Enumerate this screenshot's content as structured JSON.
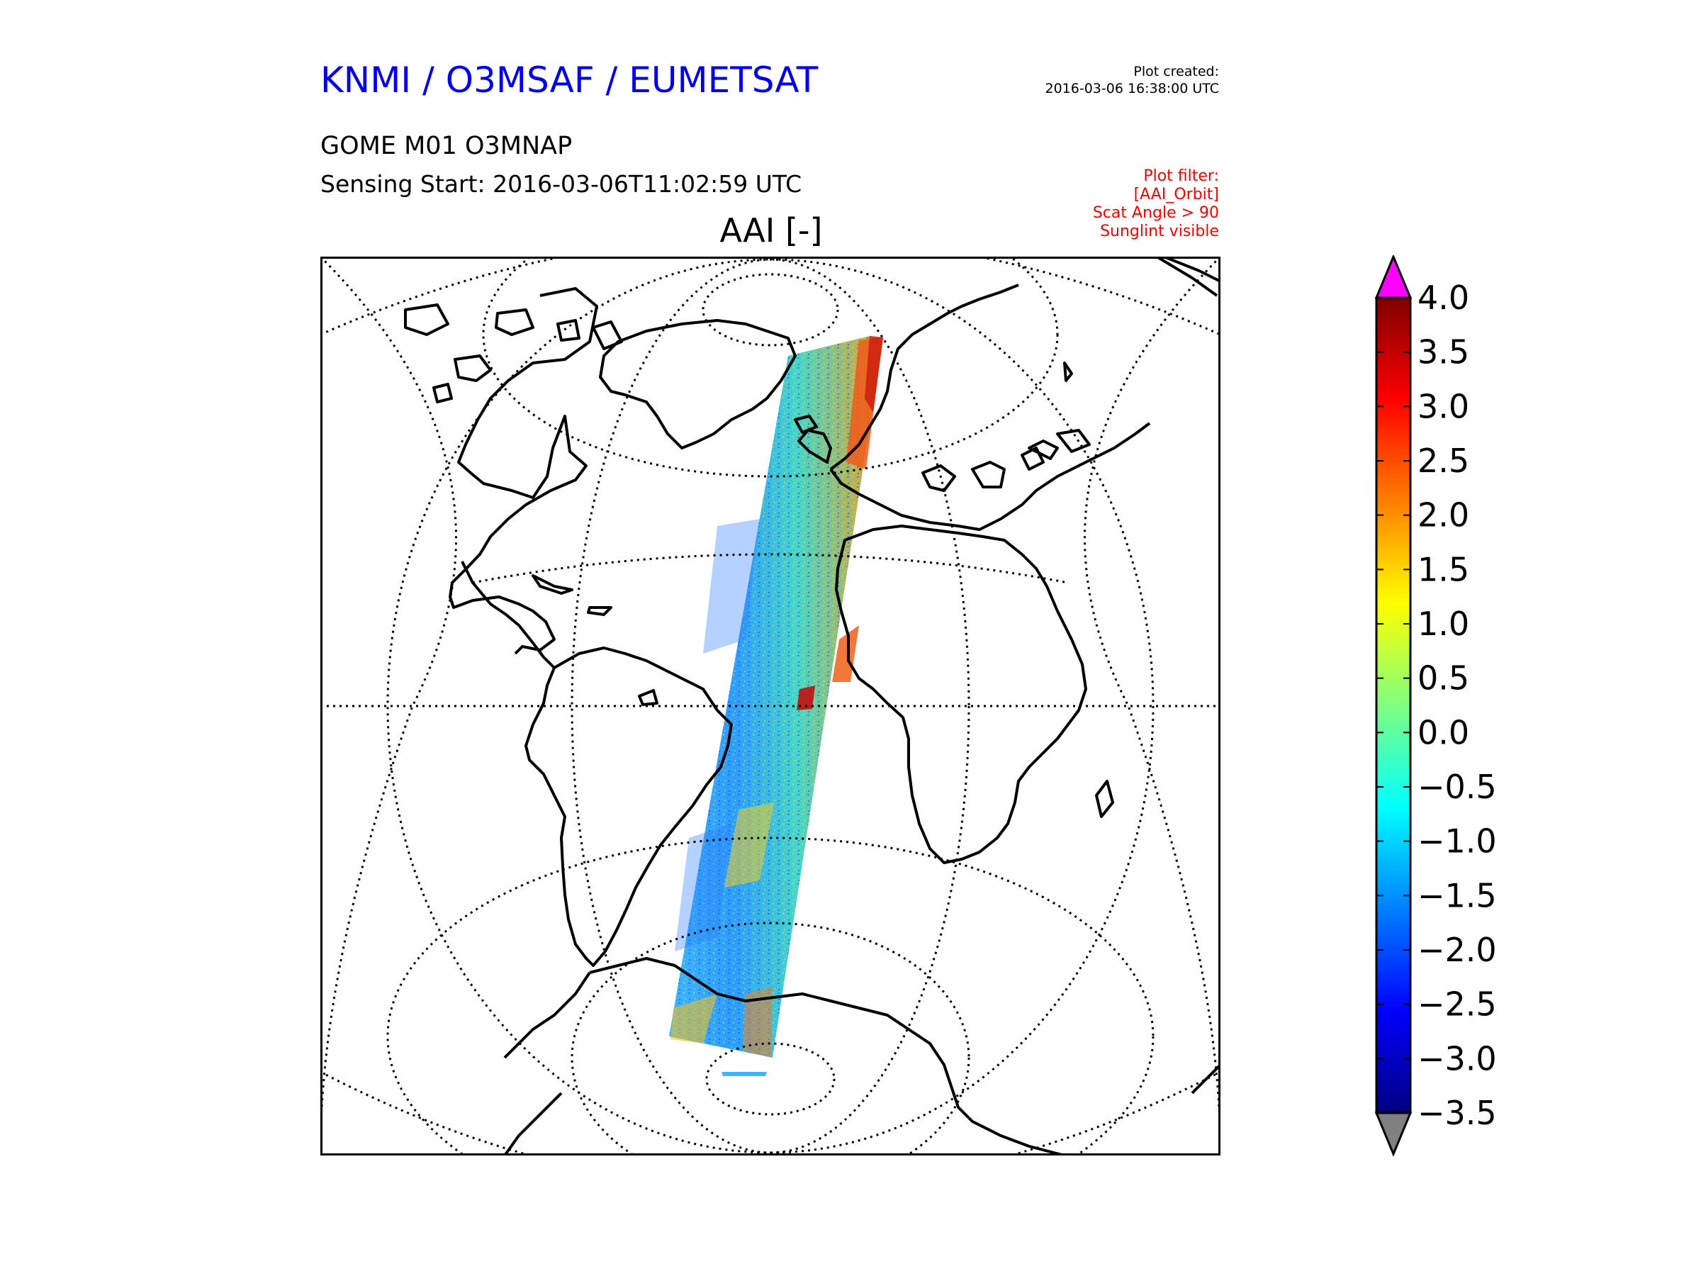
{
  "header": {
    "org": "KNMI / O3MSAF / EUMETSAT",
    "plot_created_label": "Plot created:",
    "plot_created_value": "2016-03-06 16:38:00 UTC",
    "product": "GOME M01 O3MNAP",
    "sensing_start": "Sensing Start: 2016-03-06T11:02:59 UTC"
  },
  "filter": {
    "lines": [
      "Plot filter:",
      "[AAI_Orbit]",
      "Scat Angle > 90",
      "Sunglint visible"
    ]
  },
  "map": {
    "title": "AAI [-]",
    "colors": {
      "coastline": "#000000",
      "graticule": "#000000",
      "frame": "#000000"
    }
  },
  "colorbar": {
    "ticks": [
      "4.0",
      "3.5",
      "3.0",
      "2.5",
      "2.0",
      "1.5",
      "1.0",
      "0.5",
      "0.0",
      "−0.5",
      "−1.0",
      "−1.5",
      "−2.0",
      "−2.5",
      "−3.0",
      "−3.5"
    ],
    "over_color": "#ff00ff",
    "under_color": "#808080",
    "colormap": [
      "#00007f",
      "#0000ff",
      "#007fff",
      "#00ffff",
      "#7fff7f",
      "#ffff00",
      "#ff7f00",
      "#ff0000",
      "#7f0000"
    ]
  }
}
